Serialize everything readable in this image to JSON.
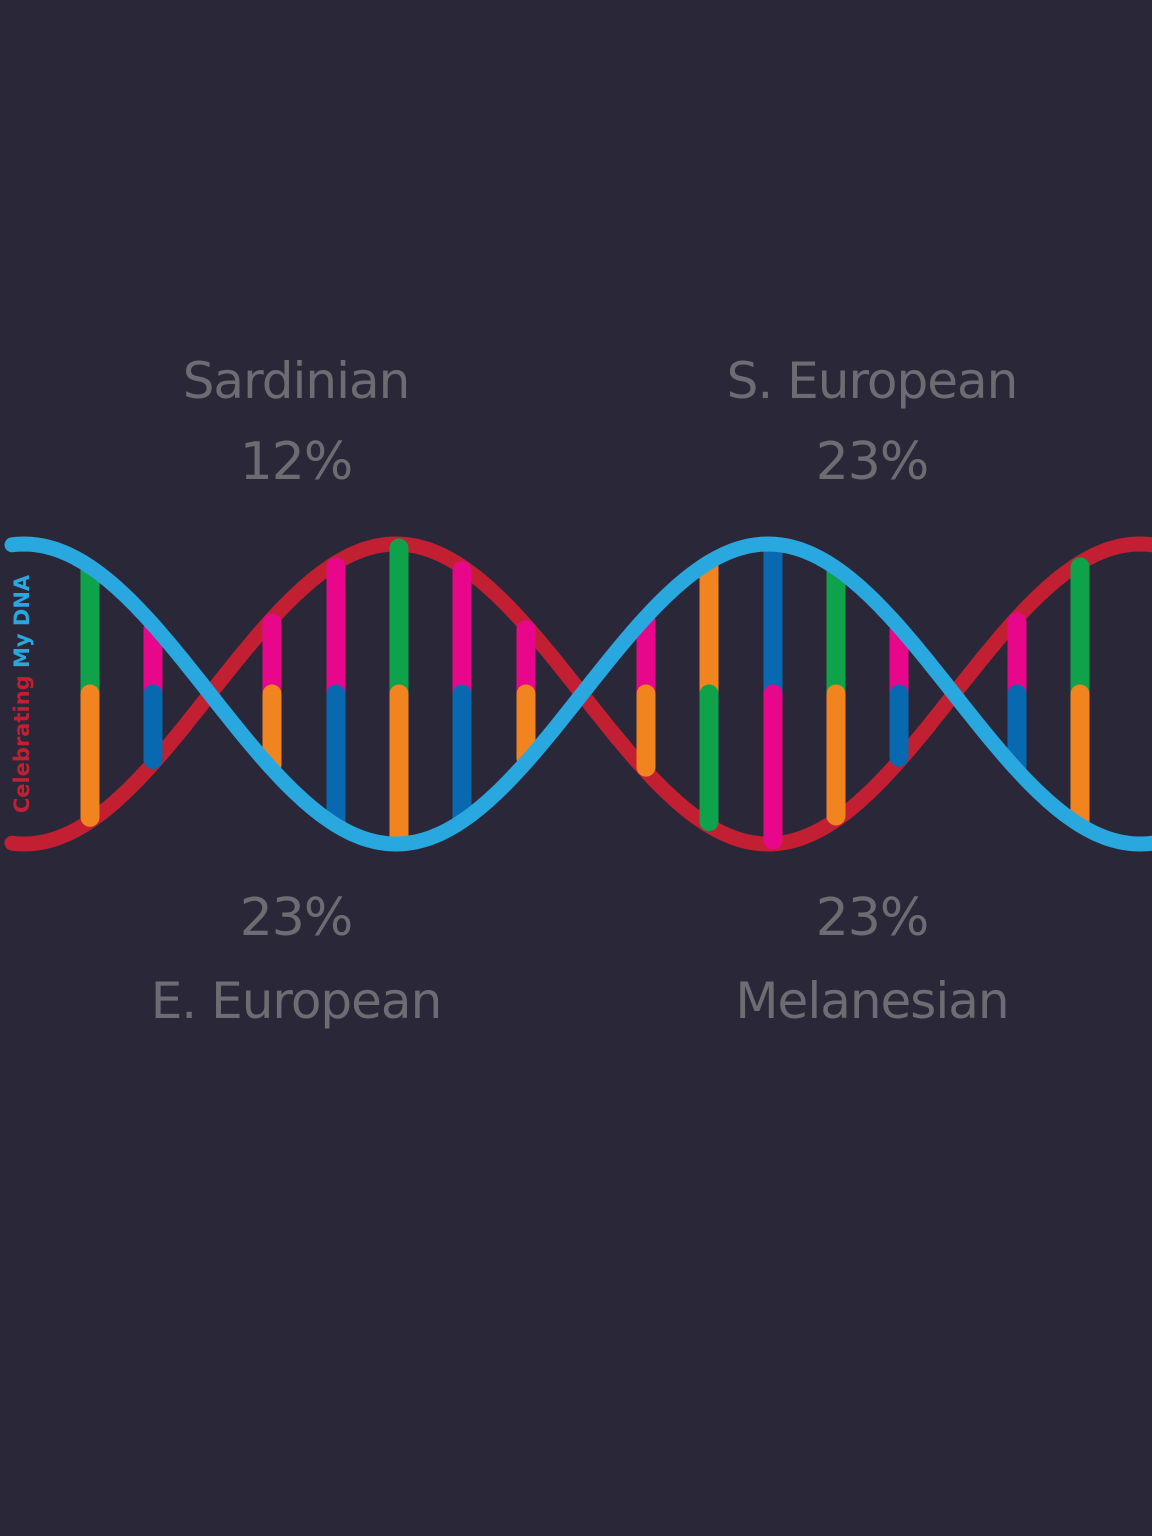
{
  "ancestry": {
    "top_left": {
      "name": "Sardinian",
      "percent": "12%"
    },
    "top_right": {
      "name": "S. European",
      "percent": "23%"
    },
    "bottom_left": {
      "name": "E. European",
      "percent": "23%"
    },
    "bottom_right": {
      "name": "Melanesian",
      "percent": "23%"
    }
  },
  "brand": {
    "word1": "Celebrating",
    "word2": "My",
    "word3": "DNA",
    "color1": "#c21f32",
    "color2": "#29a8e0"
  },
  "colors": {
    "background": "#2a2838",
    "text": "#6e6c72",
    "strand_red": "#c21f32",
    "strand_blue": "#29a8e0",
    "base_green": "#0ea34a",
    "base_orange": "#f2841f",
    "base_pink": "#e8078a",
    "base_blue": "#0868b0"
  }
}
